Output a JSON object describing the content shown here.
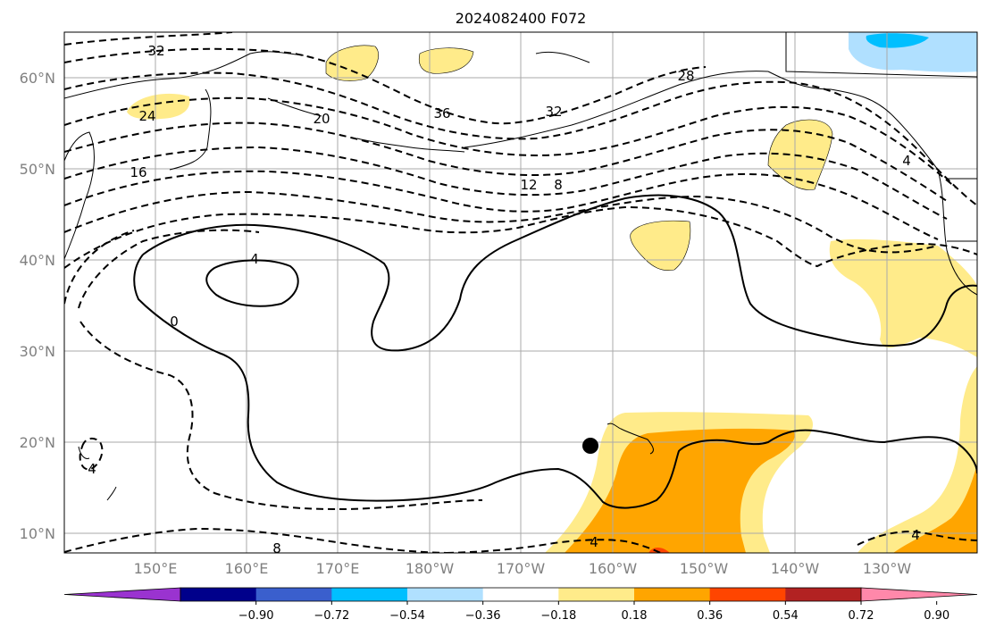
{
  "title": "2024082400 F072",
  "lon_labels": [
    "150°E",
    "160°E",
    "170°E",
    "180°W",
    "170°W",
    "160°W",
    "150°W",
    "140°W",
    "130°W"
  ],
  "lat_labels": [
    "60°N",
    "50°N",
    "40°N",
    "30°N",
    "20°N",
    "10°N"
  ],
  "colorbar": {
    "ticks": [
      "−0.90",
      "−0.72",
      "−0.54",
      "−0.36",
      "−0.18",
      "0.18",
      "0.36",
      "0.54",
      "0.72",
      "0.90"
    ],
    "colors": [
      "#9a33d0",
      "#00008b",
      "#3a5fcd",
      "#00bfff",
      "#b0e0ff",
      "#ffffff",
      "#ffeb8a",
      "#ffa500",
      "#ff4500",
      "#b22222",
      "#ff88aa"
    ]
  },
  "contour_labels": [
    "32",
    "24",
    "20",
    "16",
    "36",
    "32",
    "28",
    "12",
    "8",
    "4",
    "0",
    "4",
    "4",
    "8",
    "4",
    "4"
  ],
  "colors": {
    "fill_yellow": "#ffeb8a",
    "fill_orange": "#ffa500",
    "fill_red": "#ff4500",
    "fill_lightblue": "#b0e0ff",
    "fill_cyan": "#00bfff"
  }
}
